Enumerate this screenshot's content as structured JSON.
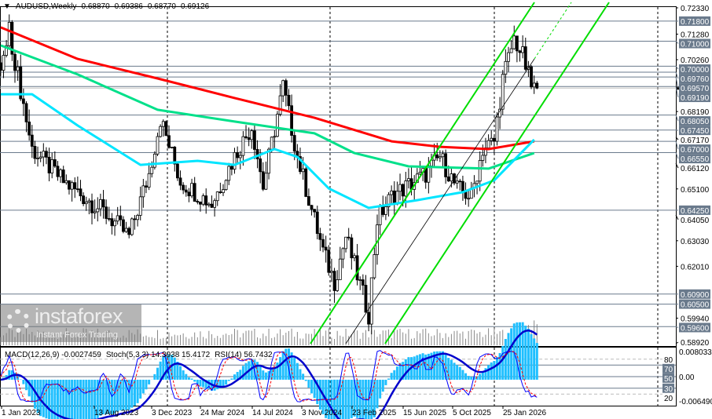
{
  "header": {
    "menu_icon": "triangle-down-icon",
    "symbol": "AUDUSD,Weekly",
    "open": "0.68870",
    "high": "0.69386",
    "low": "0.68770",
    "close": "0.69126"
  },
  "indicator_legend": {
    "macd": "MACD(12,26,9) -0.0027459",
    "stoch": "Stoch(5,3,3) 14.3938 15.4172",
    "rsi": "RSI(14) 56.7432"
  },
  "watermark": {
    "logo": "instaforex",
    "tagline": "Instant Forex Trading"
  },
  "colors": {
    "ma_red": "#ff0000",
    "ma_green": "#00e08a",
    "ma_cyan": "#00e5ff",
    "channel": "#00dd00",
    "level_line": "#6a7a8c",
    "macd_hist": "#1fbfff",
    "macd_signal": "#0000cc",
    "stoch_main": "#0000ff",
    "stoch_signal": "#ff0000"
  },
  "chart_data": {
    "type": "candlestick",
    "title": "AUDUSD,Weekly",
    "ylim": [
      0.5892,
      0.7233
    ],
    "y_ticks": [
      "0.72330",
      "0.71280",
      "0.70260",
      "0.68190",
      "0.67170",
      "0.66120",
      "0.65100",
      "0.64050",
      "0.63030",
      "0.62010",
      "0.59940",
      "0.58920"
    ],
    "x_ticks": [
      "1 Jan 2023",
      "13 Aug 2023",
      "3 Dec 2023",
      "24 Mar 2024",
      "14 Jul 2024",
      "3 Nov 2024",
      "23 Feb 2025",
      "15 Jun 2025",
      "5 Oct 2025",
      "25 Jan 2026"
    ],
    "current_price": "0.69126",
    "levels": [
      "0.71800",
      "0.71000",
      "0.70000",
      "0.69760",
      "0.69570",
      "0.69190",
      "0.68050",
      "0.67450",
      "0.67000",
      "0.66550",
      "0.64250",
      "0.60900",
      "0.60500",
      "0.59600"
    ],
    "closes": [
      [
        "2022-11-27",
        0.698
      ],
      [
        "2022-12-18",
        0.714
      ],
      [
        "2023-02-12",
        0.667
      ],
      [
        "2023-04-30",
        0.654
      ],
      [
        "2023-08-06",
        0.642
      ],
      [
        "2023-10-08",
        0.632
      ],
      [
        "2023-11-26",
        0.657
      ],
      [
        "2023-12-24",
        0.679
      ],
      [
        "2024-02-11",
        0.654
      ],
      [
        "2024-04-28",
        0.645
      ],
      [
        "2024-06-23",
        0.664
      ],
      [
        "2024-08-04",
        0.676
      ],
      [
        "2024-09-01",
        0.652
      ],
      [
        "2024-10-20",
        0.692
      ],
      [
        "2024-11-24",
        0.664
      ],
      [
        "2025-01-26",
        0.626
      ],
      [
        "2025-02-23",
        0.614
      ],
      [
        "2025-03-23",
        0.632
      ],
      [
        "2025-05-18",
        0.601
      ],
      [
        "2025-06-08",
        0.639
      ],
      [
        "2025-07-13",
        0.648
      ],
      [
        "2025-10-05",
        0.657
      ],
      [
        "2025-11-09",
        0.664
      ],
      [
        "2025-12-21",
        0.651
      ],
      [
        "2026-01-25",
        0.648
      ],
      [
        "2026-02-22",
        0.667
      ],
      [
        "2026-03-22",
        0.67
      ],
      [
        "2026-04-12",
        0.695
      ],
      [
        "2026-05-10",
        0.711
      ],
      [
        "2026-05-31",
        0.704
      ],
      [
        "2026-06-21",
        0.692
      ],
      [
        "2026-07-05",
        0.69126
      ]
    ],
    "series": [
      {
        "color": "#ff0000",
        "values": [
          [
            "2022-11-27",
            0.7155
          ],
          [
            "2023-06-04",
            0.7029
          ],
          [
            "2023-12-17",
            0.6951
          ],
          [
            "2024-06-23",
            0.6873
          ],
          [
            "2025-01-05",
            0.6794
          ],
          [
            "2025-07-13",
            0.67
          ],
          [
            "2025-11-09",
            0.6678
          ],
          [
            "2026-03-08",
            0.6669
          ],
          [
            "2026-06-28",
            0.67
          ]
        ]
      },
      {
        "color": "#00e08a",
        "values": [
          [
            "2022-11-27",
            0.7083
          ],
          [
            "2023-06-04",
            0.6967
          ],
          [
            "2023-12-17",
            0.6826
          ],
          [
            "2024-06-23",
            0.6779
          ],
          [
            "2025-01-05",
            0.6732
          ],
          [
            "2025-04-13",
            0.6653
          ],
          [
            "2025-08-24",
            0.66
          ],
          [
            "2026-03-08",
            0.6591
          ],
          [
            "2026-06-28",
            0.6653
          ]
        ]
      },
      {
        "color": "#00e5ff",
        "values": [
          [
            "2022-11-27",
            0.6888
          ],
          [
            "2023-02-12",
            0.6888
          ],
          [
            "2023-06-04",
            0.6763
          ],
          [
            "2023-11-05",
            0.6606
          ],
          [
            "2024-03-24",
            0.6622
          ],
          [
            "2024-06-23",
            0.6606
          ],
          [
            "2024-09-29",
            0.6669
          ],
          [
            "2024-11-24",
            0.6638
          ],
          [
            "2025-02-09",
            0.6512
          ],
          [
            "2025-05-18",
            0.6434
          ],
          [
            "2025-09-14",
            0.6465
          ],
          [
            "2026-01-04",
            0.6497
          ],
          [
            "2026-03-22",
            0.6544
          ],
          [
            "2026-06-28",
            0.6707
          ]
        ]
      }
    ],
    "indicator_axis": {
      "top": "0.0080333",
      "bottom": "-0.006490",
      "zero": "0.00",
      "stoch_levels": [
        "80",
        "70",
        "50",
        "30",
        "20"
      ]
    },
    "grid": false
  }
}
